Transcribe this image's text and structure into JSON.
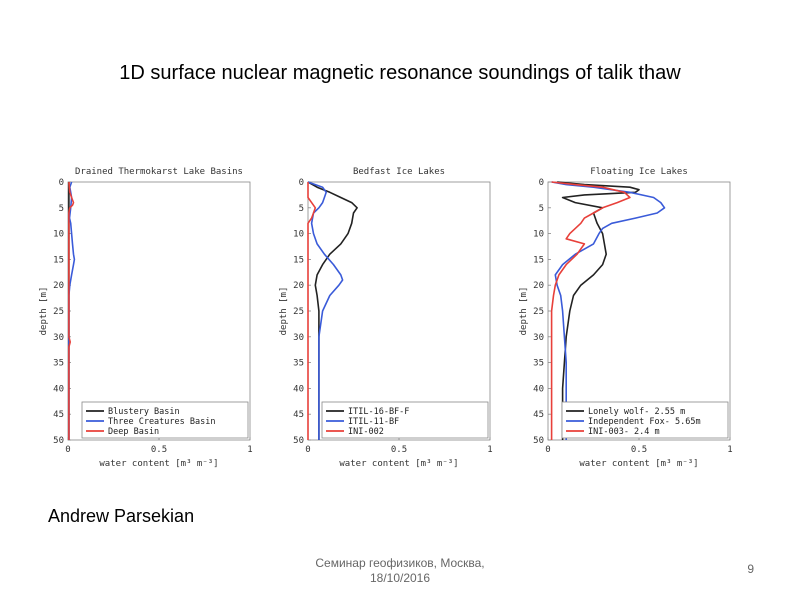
{
  "slide": {
    "title": "1D surface nuclear magnetic resonance soundings of talik thaw",
    "author": "Andrew Parsekian",
    "footer_line1": "Семинар геофизиков, Москва,",
    "footer_line2": "18/10/2016",
    "page_number": "9"
  },
  "colors": {
    "black": "#222222",
    "blue": "#3a5bd9",
    "red": "#e8403a"
  },
  "chart_data": [
    {
      "type": "line",
      "title": "Drained Thermokarst Lake Basins",
      "xlabel": "water content [m³ m⁻³]",
      "ylabel": "depth [m]",
      "xlim": [
        0,
        1
      ],
      "ylim": [
        0,
        50
      ],
      "y_inverted": true,
      "x_ticks": [
        "0",
        "0.5",
        "1"
      ],
      "y_ticks": [
        "0",
        "5",
        "10",
        "15",
        "20",
        "25",
        "30",
        "35",
        "40",
        "45",
        "50"
      ],
      "legend_position": "bottom-right",
      "series": [
        {
          "name": "Blustery Basin",
          "color": "#222222",
          "depth": [
            0,
            2,
            4,
            6,
            10,
            15,
            20,
            25,
            30,
            35,
            40,
            45,
            50
          ],
          "water": [
            0.005,
            0.005,
            0.005,
            0.005,
            0.005,
            0.005,
            0.005,
            0.005,
            0.005,
            0.005,
            0.005,
            0.005,
            0.005
          ]
        },
        {
          "name": "Three Creatures Basin",
          "color": "#3a5bd9",
          "depth": [
            0,
            1,
            2,
            3,
            5,
            7,
            8,
            10,
            12,
            14,
            15,
            16,
            18,
            20,
            22,
            25,
            30,
            35,
            40,
            45,
            50
          ],
          "water": [
            0.02,
            0.01,
            0.015,
            0.02,
            0.015,
            0.008,
            0.015,
            0.02,
            0.025,
            0.03,
            0.035,
            0.03,
            0.02,
            0.01,
            0.005,
            0.005,
            0.005,
            0.005,
            0.005,
            0.005,
            0.005
          ]
        },
        {
          "name": "Deep Basin",
          "color": "#e8403a",
          "depth": [
            0,
            2,
            3,
            4,
            4.5,
            5,
            6,
            8,
            10,
            15,
            20,
            25,
            30,
            31,
            32,
            35,
            40,
            45,
            50
          ],
          "water": [
            0.005,
            0.01,
            0.02,
            0.03,
            0.025,
            0.01,
            0.005,
            0.005,
            0.005,
            0.005,
            0.005,
            0.005,
            0.005,
            0.012,
            0.005,
            0.005,
            0.005,
            0.005,
            0.005
          ]
        }
      ]
    },
    {
      "type": "line",
      "title": "Bedfast Ice Lakes",
      "xlabel": "water content [m³ m⁻³]",
      "ylabel": "depth [m]",
      "xlim": [
        0,
        1
      ],
      "ylim": [
        0,
        50
      ],
      "y_inverted": true,
      "x_ticks": [
        "0",
        "0.5",
        "1"
      ],
      "y_ticks": [
        "0",
        "5",
        "10",
        "15",
        "20",
        "25",
        "30",
        "35",
        "40",
        "45",
        "50"
      ],
      "legend_position": "bottom-right",
      "series": [
        {
          "name": "ITIL-16-BF-F",
          "color": "#222222",
          "depth": [
            0,
            1,
            2,
            3,
            4,
            5,
            6,
            8,
            10,
            12,
            14,
            16,
            18,
            20,
            22,
            25,
            30,
            35,
            40,
            45,
            50
          ],
          "water": [
            0.0,
            0.05,
            0.12,
            0.18,
            0.24,
            0.27,
            0.25,
            0.24,
            0.22,
            0.18,
            0.12,
            0.08,
            0.05,
            0.04,
            0.05,
            0.06,
            0.06,
            0.06,
            0.06,
            0.06,
            0.06
          ]
        },
        {
          "name": "ITIL-11-BF",
          "color": "#3a5bd9",
          "depth": [
            0,
            1,
            2,
            3,
            4,
            5,
            6,
            8,
            10,
            12,
            14,
            16,
            18,
            19,
            20,
            22,
            25,
            30,
            35,
            40,
            45,
            50
          ],
          "water": [
            0.0,
            0.08,
            0.1,
            0.09,
            0.08,
            0.06,
            0.03,
            0.02,
            0.03,
            0.05,
            0.09,
            0.14,
            0.18,
            0.19,
            0.17,
            0.12,
            0.08,
            0.06,
            0.06,
            0.06,
            0.06,
            0.06
          ]
        },
        {
          "name": "INI-002",
          "color": "#e8403a",
          "depth": [
            0,
            3,
            4,
            5,
            6,
            7,
            8,
            10,
            20,
            30,
            40,
            50
          ],
          "water": [
            0.0,
            0.0,
            0.02,
            0.04,
            0.03,
            0.02,
            0.0,
            0.0,
            0.0,
            0.0,
            0.0,
            0.0
          ]
        }
      ]
    },
    {
      "type": "line",
      "title": "Floating Ice Lakes",
      "xlabel": "water content [m³ m⁻³]",
      "ylabel": "depth [m]",
      "xlim": [
        0,
        1
      ],
      "ylim": [
        0,
        50
      ],
      "y_inverted": true,
      "x_ticks": [
        "0",
        "0.5",
        "1"
      ],
      "y_ticks": [
        "0",
        "5",
        "10",
        "15",
        "20",
        "25",
        "30",
        "35",
        "40",
        "45",
        "50"
      ],
      "legend_position": "bottom-right",
      "series": [
        {
          "name": "Lonely wolf- 2.55 m",
          "color": "#222222",
          "depth": [
            0,
            0.5,
            1,
            1.5,
            2,
            2.5,
            3,
            4,
            5,
            6,
            8,
            10,
            12,
            14,
            16,
            18,
            20,
            22,
            25,
            30,
            35,
            40,
            45,
            50
          ],
          "water": [
            0.05,
            0.2,
            0.45,
            0.5,
            0.48,
            0.2,
            0.08,
            0.15,
            0.3,
            0.25,
            0.27,
            0.3,
            0.31,
            0.32,
            0.3,
            0.25,
            0.18,
            0.14,
            0.12,
            0.1,
            0.09,
            0.08,
            0.08,
            0.08
          ]
        },
        {
          "name": "Independent Fox- 5.65m",
          "color": "#3a5bd9",
          "depth": [
            0,
            0.5,
            1,
            2,
            3,
            4,
            5,
            6,
            7,
            8,
            9,
            10,
            12,
            14,
            16,
            18,
            20,
            22,
            25,
            30,
            35,
            40,
            45,
            50
          ],
          "water": [
            0.02,
            0.1,
            0.25,
            0.45,
            0.58,
            0.62,
            0.64,
            0.6,
            0.48,
            0.35,
            0.3,
            0.28,
            0.25,
            0.15,
            0.08,
            0.04,
            0.05,
            0.07,
            0.08,
            0.09,
            0.1,
            0.1,
            0.1,
            0.1
          ]
        },
        {
          "name": "INI-003- 2.4 m",
          "color": "#e8403a",
          "depth": [
            0,
            0.5,
            1,
            2,
            3,
            4,
            5,
            6,
            7,
            8,
            9,
            10,
            11,
            12,
            14,
            16,
            18,
            20,
            22,
            25,
            30,
            35,
            40,
            45,
            50
          ],
          "water": [
            0.02,
            0.15,
            0.3,
            0.42,
            0.45,
            0.38,
            0.3,
            0.25,
            0.2,
            0.18,
            0.15,
            0.12,
            0.1,
            0.2,
            0.16,
            0.1,
            0.06,
            0.04,
            0.03,
            0.02,
            0.02,
            0.02,
            0.02,
            0.02,
            0.02
          ]
        }
      ]
    }
  ]
}
